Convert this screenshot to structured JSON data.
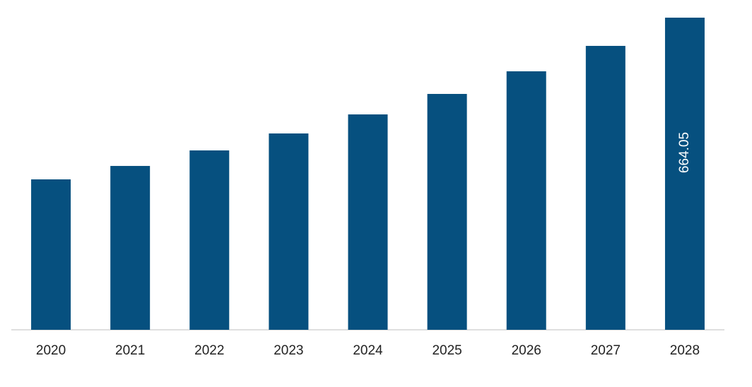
{
  "chart_data": {
    "type": "bar",
    "categories": [
      "2020",
      "2021",
      "2022",
      "2023",
      "2024",
      "2025",
      "2026",
      "2027",
      "2028"
    ],
    "values": [
      320.0,
      348.6,
      381.6,
      417.7,
      458.2,
      501.8,
      549.9,
      604.0,
      664.05
    ],
    "value_labels": [
      null,
      null,
      null,
      null,
      null,
      null,
      null,
      null,
      "664.05"
    ],
    "color": "#06507f"
  }
}
